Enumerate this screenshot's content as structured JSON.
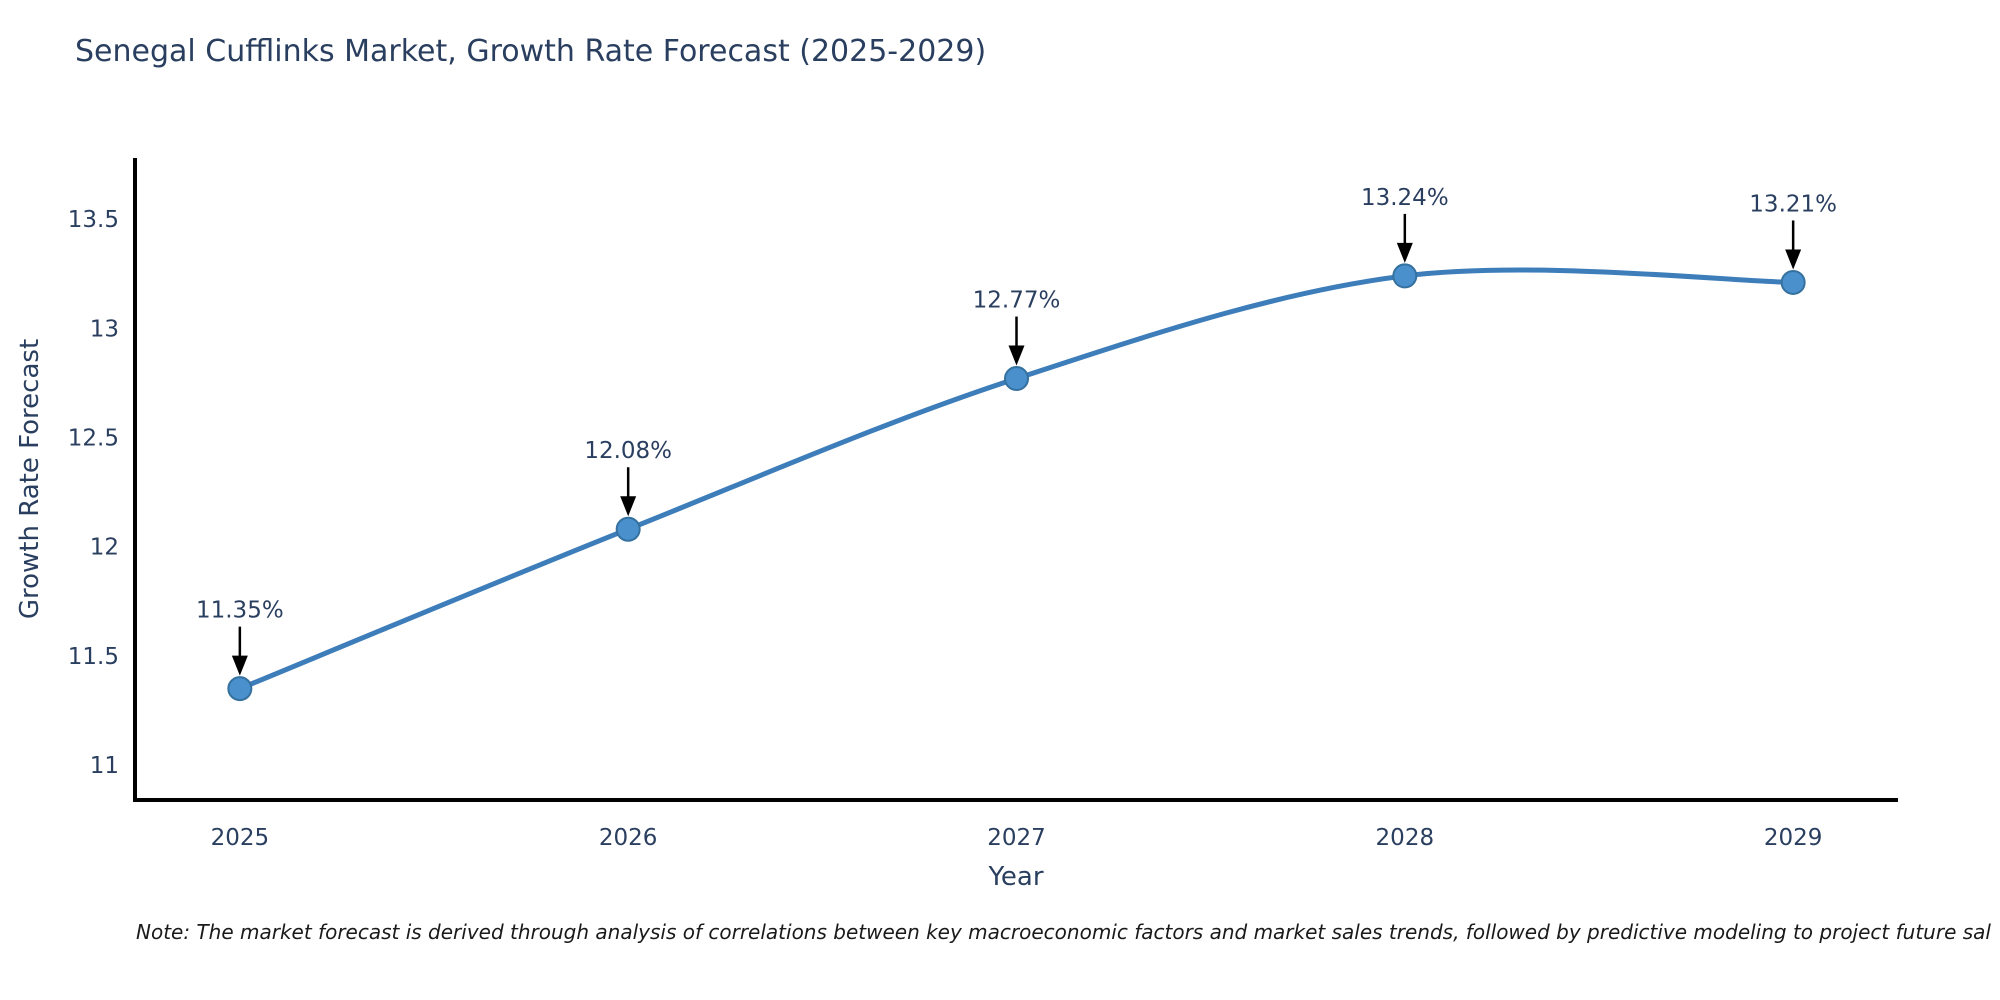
{
  "page": {
    "title": "Senegal Cufflinks Market, Growth Rate Forecast (2025-2029)",
    "note": "Note: The market forecast is derived through analysis of correlations between key macroeconomic factors and market sales trends, followed by predictive modeling to project future sal"
  },
  "chart_data": {
    "type": "line",
    "title": "Senegal Cufflinks Market, Growth Rate Forecast (2025-2029)",
    "xlabel": "Year",
    "ylabel": "Growth Rate Forecast",
    "x": [
      2025,
      2026,
      2027,
      2028,
      2029
    ],
    "series": [
      {
        "name": "Growth Rate Forecast",
        "values": [
          11.35,
          12.08,
          12.77,
          13.24,
          13.21
        ],
        "point_labels": [
          "11.35%",
          "12.08%",
          "12.77%",
          "13.24%",
          "13.21%"
        ]
      }
    ],
    "xticks": [
      "2025",
      "2026",
      "2027",
      "2028",
      "2029"
    ],
    "yticks": [
      11,
      11.5,
      12,
      12.5,
      13,
      13.5
    ],
    "xlim": [
      2024.73,
      2029.27
    ],
    "ylim": [
      10.84,
      13.78
    ],
    "grid": false,
    "legend": "none",
    "line_shape": "spline",
    "annotation_style": "value-above-with-down-arrow",
    "colors": {
      "line": "#3d7dba",
      "marker_fill": "#4a90cd",
      "marker_stroke": "#35719f",
      "axis_line": "#000000",
      "tick_text": "#2a3f5f",
      "annotation_text": "#2a3f5f",
      "arrow": "#000000",
      "title_text": "#2a3f5f",
      "note_text": "#1a1a1a",
      "background": "#ffffff"
    }
  }
}
